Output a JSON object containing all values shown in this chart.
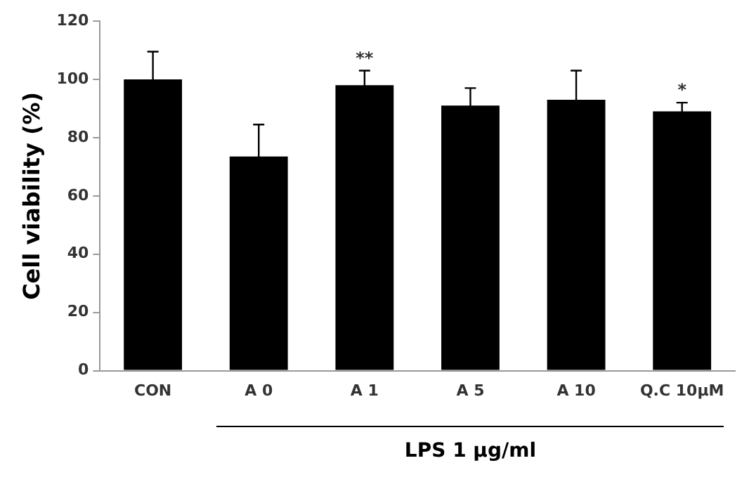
{
  "chart_data": {
    "type": "bar",
    "ylabel": "Cell viability (%)",
    "xlabel": "LPS 1 µg/ml",
    "categories": [
      "CON",
      "A 0",
      "A 1",
      "A 5",
      "A 10",
      "Q.C 10µM"
    ],
    "values": [
      100,
      73.5,
      98,
      91,
      93,
      89
    ],
    "errors": [
      9.5,
      11,
      5,
      6,
      10,
      3
    ],
    "value_labels": [
      null,
      null,
      "**",
      null,
      null,
      "*"
    ],
    "color": "#000000",
    "ylim": [
      0,
      120
    ],
    "yticks": [
      0,
      20,
      40,
      60,
      80,
      100,
      120
    ],
    "grid": false,
    "legend": false
  }
}
